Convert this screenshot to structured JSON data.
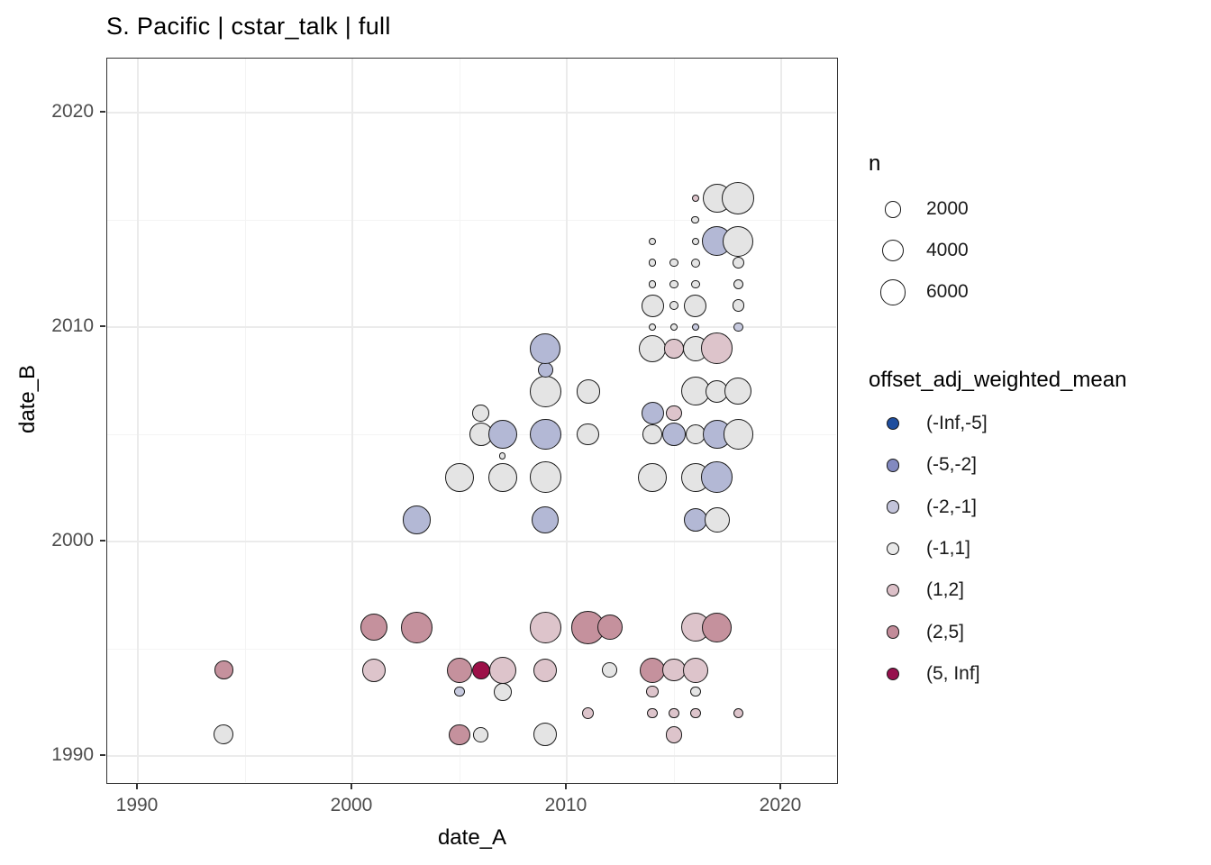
{
  "chart_data": {
    "type": "scatter",
    "title": "S. Pacific | cstar_talk | full",
    "xlabel": "date_A",
    "ylabel": "date_B",
    "x_ticks": [
      1990,
      2000,
      2010,
      2020
    ],
    "x_minor_ticks": [
      1995,
      2005,
      2015
    ],
    "y_ticks": [
      1990,
      2000,
      2010,
      2020
    ],
    "y_minor_ticks": [
      1995,
      2005,
      2015
    ],
    "xlim": [
      1988.6,
      2022.7
    ],
    "ylim": [
      1988.7,
      2022.5
    ],
    "grid": "on",
    "legend_position": "right",
    "size_legend": {
      "title": "n",
      "entries": [
        2000,
        4000,
        6000
      ]
    },
    "size_scale": {
      "a": 2.67,
      "b": 0.1527
    },
    "color_legend": {
      "title": "offset_adj_weighted_mean",
      "bins": [
        {
          "label": "(-Inf,-5]",
          "color": "#1f4e9e",
          "point_color": "#1f4e9e"
        },
        {
          "label": "(-5,-2]",
          "color": "#8289c0",
          "point_color": "#b3b8d5"
        },
        {
          "label": "(-2,-1]",
          "color": "#c3c4da",
          "point_color": "#c6c9de"
        },
        {
          "label": "(-1,1]",
          "color": "#e9e9e9",
          "point_color": "#e4e4e4"
        },
        {
          "label": "(1,2]",
          "color": "#dcc0c8",
          "point_color": "#ddc4cb"
        },
        {
          "label": "(2,5]",
          "color": "#c28b99",
          "point_color": "#c5919d"
        },
        {
          "label": "(5, Inf]",
          "color": "#96104d",
          "point_color": "#9c1148"
        }
      ]
    },
    "points": [
      {
        "x": 2016,
        "y": 2016,
        "n": 100,
        "bin": "(1,2]"
      },
      {
        "x": 2017,
        "y": 2016,
        "n": 7600,
        "bin": "(-1,1]"
      },
      {
        "x": 2018,
        "y": 2016,
        "n": 10000,
        "bin": "(-1,1]"
      },
      {
        "x": 2016,
        "y": 2015,
        "n": 140,
        "bin": "(-1,1]"
      },
      {
        "x": 2014,
        "y": 2014,
        "n": 100,
        "bin": "(-1,1]"
      },
      {
        "x": 2016,
        "y": 2014,
        "n": 100,
        "bin": "(-1,1]"
      },
      {
        "x": 2017,
        "y": 2014,
        "n": 8400,
        "bin": "(-5,-2]"
      },
      {
        "x": 2018,
        "y": 2014,
        "n": 8800,
        "bin": "(-1,1]"
      },
      {
        "x": 2014,
        "y": 2013,
        "n": 100,
        "bin": "(-1,1]"
      },
      {
        "x": 2015,
        "y": 2013,
        "n": 180,
        "bin": "(-1,1]"
      },
      {
        "x": 2016,
        "y": 2013,
        "n": 230,
        "bin": "(-1,1]"
      },
      {
        "x": 2018,
        "y": 2013,
        "n": 700,
        "bin": "(-1,1]"
      },
      {
        "x": 2014,
        "y": 2012,
        "n": 100,
        "bin": "(-1,1]"
      },
      {
        "x": 2015,
        "y": 2012,
        "n": 180,
        "bin": "(-1,1]"
      },
      {
        "x": 2016,
        "y": 2012,
        "n": 180,
        "bin": "(-1,1]"
      },
      {
        "x": 2018,
        "y": 2012,
        "n": 400,
        "bin": "(-1,1]"
      },
      {
        "x": 2014,
        "y": 2011,
        "n": 4000,
        "bin": "(-1,1]"
      },
      {
        "x": 2015,
        "y": 2011,
        "n": 230,
        "bin": "(-1,1]"
      },
      {
        "x": 2016,
        "y": 2011,
        "n": 4300,
        "bin": "(-1,1]"
      },
      {
        "x": 2018,
        "y": 2011,
        "n": 700,
        "bin": "(-1,1]"
      },
      {
        "x": 2014,
        "y": 2010,
        "n": 75,
        "bin": "(-1,1]"
      },
      {
        "x": 2015,
        "y": 2010,
        "n": 75,
        "bin": "(-1,1]"
      },
      {
        "x": 2016,
        "y": 2010,
        "n": 75,
        "bin": "(-2,-1]"
      },
      {
        "x": 2018,
        "y": 2010,
        "n": 300,
        "bin": "(-2,-1]"
      },
      {
        "x": 2009,
        "y": 2009,
        "n": 8800,
        "bin": "(-5,-2]"
      },
      {
        "x": 2014,
        "y": 2009,
        "n": 6500,
        "bin": "(-1,1]"
      },
      {
        "x": 2015,
        "y": 2009,
        "n": 2800,
        "bin": "(1,2]"
      },
      {
        "x": 2016,
        "y": 2009,
        "n": 5500,
        "bin": "(-1,1]"
      },
      {
        "x": 2017,
        "y": 2009,
        "n": 9200,
        "bin": "(1,2]"
      },
      {
        "x": 2009,
        "y": 2008,
        "n": 1400,
        "bin": "(-5,-2]"
      },
      {
        "x": 2009,
        "y": 2007,
        "n": 9200,
        "bin": "(-1,1]"
      },
      {
        "x": 2011,
        "y": 2007,
        "n": 4800,
        "bin": "(-1,1]"
      },
      {
        "x": 2016,
        "y": 2007,
        "n": 7600,
        "bin": "(-1,1]"
      },
      {
        "x": 2017,
        "y": 2007,
        "n": 4300,
        "bin": "(-1,1]"
      },
      {
        "x": 2018,
        "y": 2007,
        "n": 6500,
        "bin": "(-1,1]"
      },
      {
        "x": 2006,
        "y": 2006,
        "n": 1900,
        "bin": "(-1,1]"
      },
      {
        "x": 2014,
        "y": 2006,
        "n": 4300,
        "bin": "(-5,-2]"
      },
      {
        "x": 2015,
        "y": 2006,
        "n": 1550,
        "bin": "(1,2]"
      },
      {
        "x": 2006,
        "y": 2005,
        "n": 4800,
        "bin": "(-1,1]"
      },
      {
        "x": 2007,
        "y": 2005,
        "n": 7600,
        "bin": "(-5,-2]"
      },
      {
        "x": 2009,
        "y": 2005,
        "n": 9200,
        "bin": "(-5,-2]"
      },
      {
        "x": 2011,
        "y": 2005,
        "n": 4000,
        "bin": "(-1,1]"
      },
      {
        "x": 2014,
        "y": 2005,
        "n": 2800,
        "bin": "(-1,1]"
      },
      {
        "x": 2015,
        "y": 2005,
        "n": 4800,
        "bin": "(-5,-2]"
      },
      {
        "x": 2016,
        "y": 2005,
        "n": 3000,
        "bin": "(-1,1]"
      },
      {
        "x": 2017,
        "y": 2005,
        "n": 7600,
        "bin": "(-5,-2]"
      },
      {
        "x": 2018,
        "y": 2005,
        "n": 8400,
        "bin": "(-1,1]"
      },
      {
        "x": 2007,
        "y": 2004,
        "n": 50,
        "bin": "(-1,1]"
      },
      {
        "x": 2005,
        "y": 2003,
        "n": 7600,
        "bin": "(-1,1]"
      },
      {
        "x": 2007,
        "y": 2003,
        "n": 7600,
        "bin": "(-1,1]"
      },
      {
        "x": 2009,
        "y": 2003,
        "n": 9200,
        "bin": "(-1,1]"
      },
      {
        "x": 2014,
        "y": 2003,
        "n": 7600,
        "bin": "(-1,1]"
      },
      {
        "x": 2016,
        "y": 2003,
        "n": 7600,
        "bin": "(-1,1]"
      },
      {
        "x": 2017,
        "y": 2003,
        "n": 9200,
        "bin": "(-5,-2]"
      },
      {
        "x": 2003,
        "y": 2001,
        "n": 7300,
        "bin": "(-5,-2]"
      },
      {
        "x": 2009,
        "y": 2001,
        "n": 6500,
        "bin": "(-5,-2]"
      },
      {
        "x": 2016,
        "y": 2001,
        "n": 4800,
        "bin": "(-5,-2]"
      },
      {
        "x": 2017,
        "y": 2001,
        "n": 5500,
        "bin": "(-1,1]"
      },
      {
        "x": 2001,
        "y": 1996,
        "n": 6500,
        "bin": "(2,5]"
      },
      {
        "x": 2003,
        "y": 1996,
        "n": 9200,
        "bin": "(2,5]"
      },
      {
        "x": 2009,
        "y": 1996,
        "n": 9200,
        "bin": "(1,2]"
      },
      {
        "x": 2011,
        "y": 1996,
        "n": 10500,
        "bin": "(2,5]"
      },
      {
        "x": 2012,
        "y": 1996,
        "n": 5500,
        "bin": "(2,5]"
      },
      {
        "x": 2016,
        "y": 1996,
        "n": 7600,
        "bin": "(1,2]"
      },
      {
        "x": 2017,
        "y": 1996,
        "n": 8400,
        "bin": "(2,5]"
      },
      {
        "x": 1994,
        "y": 1994,
        "n": 2500,
        "bin": "(2,5]"
      },
      {
        "x": 2001,
        "y": 1994,
        "n": 4800,
        "bin": "(1,2]"
      },
      {
        "x": 2005,
        "y": 1994,
        "n": 5800,
        "bin": "(2,5]"
      },
      {
        "x": 2006,
        "y": 1994,
        "n": 2300,
        "bin": "(5, Inf]"
      },
      {
        "x": 2007,
        "y": 1994,
        "n": 6500,
        "bin": "(1,2]"
      },
      {
        "x": 2009,
        "y": 1994,
        "n": 4800,
        "bin": "(1,2]"
      },
      {
        "x": 2012,
        "y": 1994,
        "n": 1400,
        "bin": "(-1,1]"
      },
      {
        "x": 2014,
        "y": 1994,
        "n": 5500,
        "bin": "(2,5]"
      },
      {
        "x": 2015,
        "y": 1994,
        "n": 4300,
        "bin": "(1,2]"
      },
      {
        "x": 2016,
        "y": 1994,
        "n": 5500,
        "bin": "(1,2]"
      },
      {
        "x": 2005,
        "y": 1993,
        "n": 400,
        "bin": "(-2,-1]"
      },
      {
        "x": 2007,
        "y": 1993,
        "n": 2300,
        "bin": "(-1,1]"
      },
      {
        "x": 2014,
        "y": 1993,
        "n": 700,
        "bin": "(1,2]"
      },
      {
        "x": 2016,
        "y": 1993,
        "n": 400,
        "bin": "(-1,1]"
      },
      {
        "x": 2011,
        "y": 1992,
        "n": 700,
        "bin": "(1,2]"
      },
      {
        "x": 2014,
        "y": 1992,
        "n": 400,
        "bin": "(1,2]"
      },
      {
        "x": 2015,
        "y": 1992,
        "n": 400,
        "bin": "(1,2]"
      },
      {
        "x": 2016,
        "y": 1992,
        "n": 400,
        "bin": "(1,2]"
      },
      {
        "x": 2018,
        "y": 1992,
        "n": 400,
        "bin": "(1,2]"
      },
      {
        "x": 1994,
        "y": 1991,
        "n": 3000,
        "bin": "(-1,1]"
      },
      {
        "x": 2005,
        "y": 1991,
        "n": 3400,
        "bin": "(2,5]"
      },
      {
        "x": 2006,
        "y": 1991,
        "n": 1400,
        "bin": "(-1,1]"
      },
      {
        "x": 2009,
        "y": 1991,
        "n": 4800,
        "bin": "(-1,1]"
      },
      {
        "x": 2015,
        "y": 1991,
        "n": 1900,
        "bin": "(1,2]"
      }
    ]
  }
}
